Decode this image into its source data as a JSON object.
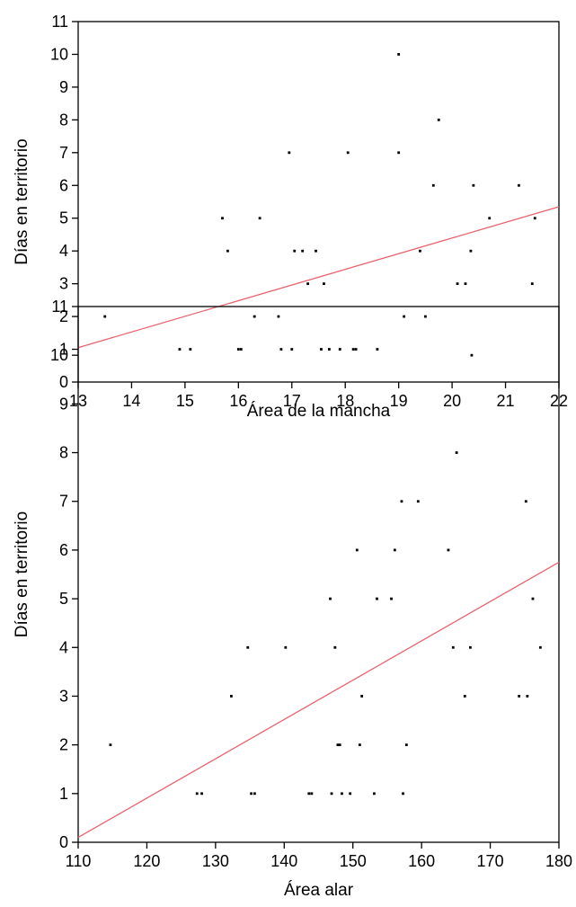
{
  "chart_data": [
    {
      "type": "scatter",
      "xlabel": "Área de la mancha",
      "ylabel": "Días en territorio",
      "xlim": [
        13,
        22
      ],
      "ylim": [
        0,
        11
      ],
      "x_ticks": [
        13,
        14,
        15,
        16,
        17,
        18,
        19,
        20,
        21,
        22
      ],
      "y_ticks": [
        0,
        1,
        2,
        3,
        4,
        5,
        6,
        7,
        8,
        9,
        10,
        11
      ],
      "grid": false,
      "trendline": {
        "type": "linear",
        "x": [
          13,
          22
        ],
        "y": [
          1.05,
          5.35
        ],
        "color": "#e8636e"
      },
      "points": [
        [
          13.5,
          2
        ],
        [
          14.9,
          1
        ],
        [
          15.1,
          1
        ],
        [
          15.7,
          5
        ],
        [
          15.8,
          4
        ],
        [
          16.0,
          1
        ],
        [
          16.05,
          1
        ],
        [
          16.3,
          2
        ],
        [
          16.4,
          5
        ],
        [
          16.75,
          2
        ],
        [
          16.8,
          1
        ],
        [
          16.95,
          7
        ],
        [
          17.0,
          1
        ],
        [
          17.05,
          4
        ],
        [
          17.2,
          4
        ],
        [
          17.3,
          3
        ],
        [
          17.45,
          4
        ],
        [
          17.55,
          1
        ],
        [
          17.6,
          3
        ],
        [
          17.7,
          1
        ],
        [
          17.9,
          1
        ],
        [
          18.05,
          7
        ],
        [
          18.15,
          1
        ],
        [
          18.2,
          1
        ],
        [
          18.6,
          1
        ],
        [
          19.0,
          7
        ],
        [
          19.0,
          10
        ],
        [
          19.1,
          2
        ],
        [
          19.4,
          4
        ],
        [
          19.5,
          2
        ],
        [
          19.65,
          6
        ],
        [
          19.75,
          8
        ],
        [
          20.1,
          3
        ],
        [
          20.25,
          3
        ],
        [
          20.35,
          4
        ],
        [
          20.4,
          6
        ],
        [
          20.7,
          5
        ],
        [
          21.25,
          6
        ],
        [
          21.5,
          3
        ],
        [
          21.55,
          5
        ]
      ]
    },
    {
      "type": "scatter",
      "xlabel": "Área alar",
      "ylabel": "Días en territorio",
      "xlim": [
        110,
        180
      ],
      "ylim": [
        0,
        11
      ],
      "x_ticks": [
        110,
        120,
        130,
        140,
        150,
        160,
        170,
        180
      ],
      "y_ticks": [
        0,
        1,
        2,
        3,
        4,
        5,
        6,
        7,
        8,
        9,
        10,
        11
      ],
      "grid": false,
      "trendline": {
        "type": "linear",
        "x": [
          110,
          180
        ],
        "y": [
          0.1,
          5.75
        ],
        "color": "#e8636e"
      },
      "points": [
        [
          114.7,
          2
        ],
        [
          127.3,
          1
        ],
        [
          128.0,
          1
        ],
        [
          132.3,
          3
        ],
        [
          134.7,
          4
        ],
        [
          135.2,
          1
        ],
        [
          135.7,
          1
        ],
        [
          140.2,
          4
        ],
        [
          143.6,
          1
        ],
        [
          144.0,
          1
        ],
        [
          146.7,
          5
        ],
        [
          146.9,
          1
        ],
        [
          147.4,
          4
        ],
        [
          147.8,
          2
        ],
        [
          148.1,
          2
        ],
        [
          148.4,
          1
        ],
        [
          149.6,
          1
        ],
        [
          150.6,
          6
        ],
        [
          151.0,
          2
        ],
        [
          151.3,
          3
        ],
        [
          153.1,
          1
        ],
        [
          153.5,
          5
        ],
        [
          155.6,
          5
        ],
        [
          156.1,
          6
        ],
        [
          157.1,
          7
        ],
        [
          157.3,
          1
        ],
        [
          157.8,
          2
        ],
        [
          159.5,
          7
        ],
        [
          163.9,
          6
        ],
        [
          164.6,
          4
        ],
        [
          165.1,
          8
        ],
        [
          166.3,
          3
        ],
        [
          167.1,
          4
        ],
        [
          167.3,
          10
        ],
        [
          174.2,
          3
        ],
        [
          175.2,
          7
        ],
        [
          175.4,
          3
        ],
        [
          176.2,
          5
        ],
        [
          177.3,
          4
        ]
      ]
    }
  ]
}
